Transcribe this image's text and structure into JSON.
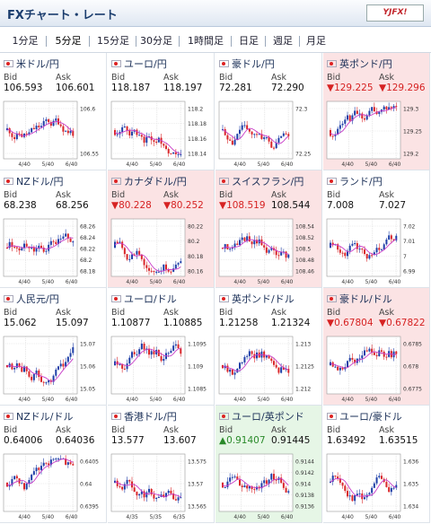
{
  "header": {
    "title": "FXチャート・レート",
    "logo": "YJFX!"
  },
  "tabs": [
    "1分足",
    "5分足",
    "15分足",
    "30分足",
    "1時間足",
    "日足",
    "週足",
    "月足"
  ],
  "active_tab": 1,
  "labels": {
    "bid": "Bid",
    "ask": "Ask"
  },
  "pairs": [
    {
      "name": "米ドル/円",
      "bid": "106.593",
      "ask": "106.601",
      "trend": "",
      "flag": "us-flag-icon",
      "ticks": [
        "106.6",
        "106.55"
      ],
      "x": [
        "4/40",
        "5/40",
        "6/40"
      ]
    },
    {
      "name": "ユーロ/円",
      "bid": "118.187",
      "ask": "118.197",
      "trend": "",
      "flag": "eu-flag-icon",
      "ticks": [
        "118.2",
        "118.18",
        "118.16",
        "118.14"
      ],
      "x": [
        "4/40",
        "5/40",
        "6/40"
      ]
    },
    {
      "name": "豪ドル/円",
      "bid": "72.281",
      "ask": "72.290",
      "trend": "",
      "flag": "au-flag-icon",
      "ticks": [
        "72.3",
        "72.25"
      ],
      "x": [
        "4/40",
        "5/40",
        "6/40"
      ]
    },
    {
      "name": "英ポンド/円",
      "bid": "▼129.225",
      "ask": "▼129.296",
      "trend": "down",
      "flag": "uk-flag-icon",
      "ticks": [
        "129.3",
        "129.25",
        "129.2"
      ],
      "x": [
        "4/40",
        "5/40",
        "6/40"
      ]
    },
    {
      "name": "NZドル/円",
      "bid": "68.238",
      "ask": "68.256",
      "trend": "",
      "flag": "nz-flag-icon",
      "ticks": [
        "68.26",
        "68.24",
        "68.22",
        "68.2",
        "68.18"
      ],
      "x": [
        "4/40",
        "5/40",
        "6/40"
      ]
    },
    {
      "name": "カナダドル/円",
      "bid": "▼80.228",
      "ask": "▼80.252",
      "trend": "down",
      "flag": "ca-flag-icon",
      "ticks": [
        "80.22",
        "80.2",
        "80.18",
        "80.16"
      ],
      "x": [
        "4/40",
        "5/40",
        "6/40"
      ]
    },
    {
      "name": "スイスフラン/円",
      "bid": "▼108.519",
      "ask": "108.544",
      "trend": "down",
      "flag": "ch-flag-icon",
      "ticks": [
        "108.54",
        "108.52",
        "108.5",
        "108.48",
        "108.46"
      ],
      "x": [
        "4/40",
        "5/40",
        "6/40"
      ]
    },
    {
      "name": "ランド/円",
      "bid": "7.008",
      "ask": "7.027",
      "trend": "",
      "flag": "za-flag-icon",
      "ticks": [
        "7.02",
        "7.01",
        "7",
        "6.99"
      ],
      "x": [
        "4/40",
        "5/40",
        "6/40"
      ]
    },
    {
      "name": "人民元/円",
      "bid": "15.062",
      "ask": "15.097",
      "trend": "",
      "flag": "cn-flag-icon",
      "ticks": [
        "15.07",
        "15.06",
        "15.05"
      ],
      "x": [
        "4/40",
        "5/40",
        "6/40"
      ]
    },
    {
      "name": "ユーロ/ドル",
      "bid": "1.10877",
      "ask": "1.10885",
      "trend": "",
      "flag": "eu-flag-icon",
      "ticks": [
        "1.1095",
        "1.109",
        "1.1085"
      ],
      "x": [
        "4/40",
        "5/40",
        "6/40"
      ]
    },
    {
      "name": "英ポンド/ドル",
      "bid": "1.21258",
      "ask": "1.21324",
      "trend": "",
      "flag": "uk-flag-icon",
      "ticks": [
        "1.213",
        "1.2125",
        "1.212"
      ],
      "x": [
        "4/40",
        "5/40",
        "6/40"
      ]
    },
    {
      "name": "豪ドル/ドル",
      "bid": "▼0.67804",
      "ask": "▼0.67822",
      "trend": "down",
      "flag": "au-flag-icon",
      "ticks": [
        "0.6785",
        "0.678",
        "0.6775"
      ],
      "x": [
        "4/40",
        "5/40",
        "6/40"
      ]
    },
    {
      "name": "NZドル/ドル",
      "bid": "0.64006",
      "ask": "0.64036",
      "trend": "",
      "flag": "nz-flag-icon",
      "ticks": [
        "0.6405",
        "0.64",
        "0.6395"
      ],
      "x": [
        "4/40",
        "5/40",
        "6/40"
      ]
    },
    {
      "name": "香港ドル/円",
      "bid": "13.577",
      "ask": "13.607",
      "trend": "",
      "flag": "hk-flag-icon",
      "ticks": [
        "13.575",
        "13.57",
        "13.565"
      ],
      "x": [
        "4/35",
        "5/35",
        "6/35"
      ]
    },
    {
      "name": "ユーロ/英ポンド",
      "bid": "▲0.91407",
      "ask": "0.91445",
      "trend": "up",
      "flag": "eu-flag-icon",
      "ticks": [
        "0.9144",
        "0.9142",
        "0.914",
        "0.9138",
        "0.9136"
      ],
      "x": [
        "4/40",
        "5/40",
        "6/40"
      ]
    },
    {
      "name": "ユーロ/豪ドル",
      "bid": "1.63492",
      "ask": "1.63515",
      "trend": "",
      "flag": "eu-flag-icon",
      "ticks": [
        "1.636",
        "1.635",
        "1.634"
      ],
      "x": [
        "4/40",
        "5/40",
        "6/40"
      ]
    }
  ],
  "colors": {
    "up_candle": "#1f3fa8",
    "down_candle": "#d9262a",
    "ma_line": "#c83cc8",
    "down_bg": "#fbe3e4",
    "up_bg": "#e6f6e6"
  }
}
